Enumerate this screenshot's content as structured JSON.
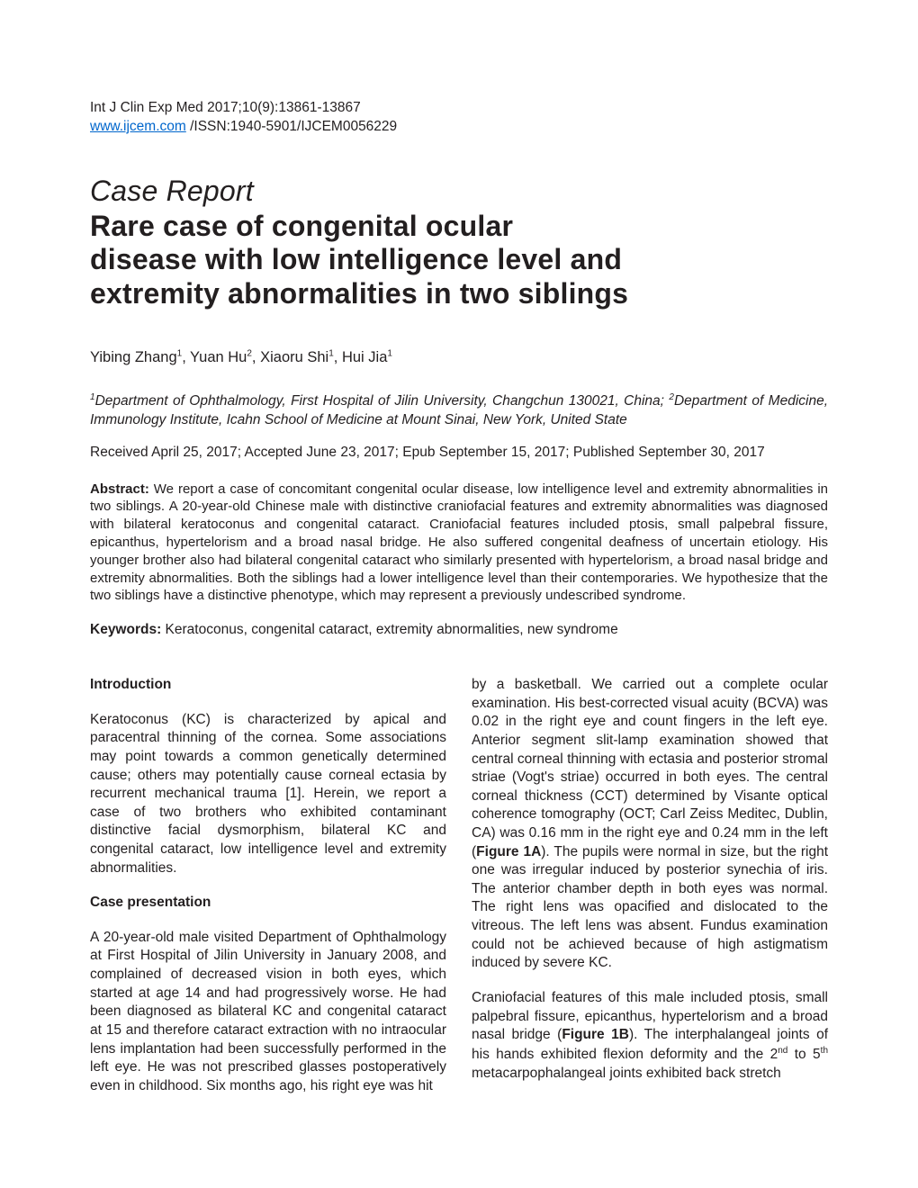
{
  "header": {
    "citation": "Int J Clin Exp Med 2017;10(9):13861-13867",
    "url": "www.ijcem.com",
    "issn_suffix": " /ISSN:1940-5901/IJCEM0056229"
  },
  "article": {
    "type": "Case Report",
    "title_line1": "Rare case of congenital ocular",
    "title_line2": "disease with low intelligence level and",
    "title_line3": "extremity abnormalities in two siblings",
    "authors_html": "Yibing Zhang<span class=\"sup\">1</span>, Yuan Hu<span class=\"sup\">2</span>, Xiaoru Shi<span class=\"sup\">1</span>, Hui Jia<span class=\"sup\">1</span>",
    "affiliations_html": "<span class=\"sup\">1</span>Department of Ophthalmology, First Hospital of Jilin University, Changchun 130021, China; <span class=\"sup\">2</span>Department of Medicine, Immunology Institute, Icahn School of Medicine at Mount Sinai, New York, United State",
    "dates": "Received April 25, 2017; Accepted June 23, 2017; Epub September 15, 2017; Published September 30, 2017",
    "abstract_label": "Abstract:",
    "abstract_text": " We report a case of concomitant congenital ocular disease, low intelligence level and extremity abnormalities in two siblings. A 20-year-old Chinese male with distinctive craniofacial features and extremity abnormalities was diagnosed with bilateral keratoconus and congenital cataract. Craniofacial features included ptosis, small palpebral fissure, epicanthus, hypertelorism and a broad nasal bridge. He also suffered congenital deafness of uncertain etiology. His younger brother also had bilateral congenital cataract who similarly presented with hypertelorism, a broad nasal bridge and extremity abnormalities. Both the siblings had a lower intelligence level than their contemporaries. We hypothesize that the two siblings have a distinctive phenotype, which may represent a previously undescribed syndrome.",
    "keywords_label": "Keywords:",
    "keywords_text": " Keratoconus, congenital cataract, extremity abnormalities, new syndrome"
  },
  "body": {
    "left": {
      "heading1": "Introduction",
      "para1": "Keratoconus (KC) is characterized by apical and paracentral thinning of the cornea. Some associations may point towards a common genetically determined cause; others may potentially cause corneal ectasia by recurrent mechanical trauma [1]. Herein, we report a case of two brothers who exhibited contaminant distinctive facial dysmorphism, bilateral KC and congenital cataract, low intelligence level and extremity abnormalities.",
      "heading2": "Case presentation",
      "para2": "A 20-year-old male visited Department of Ophthalmology at First Hospital of Jilin University in January 2008, and complained of decreased vision in both eyes, which started at age 14 and had progressively worse. He had been diagnosed as bilateral KC and congenital cataract at 15 and therefore cataract extraction with no intraocular lens implantation had been successfully performed in the left eye. He was not prescribed glasses postoperatively even in childhood. Six months ago, his right eye was hit"
    },
    "right": {
      "para1_html": "by a basketball. We carried out a complete ocular examination. His best-corrected visual acuity (BCVA) was 0.02 in the right eye and count fingers in the left eye. Anterior segment slit-lamp examination showed that central corneal thinning with ectasia and posterior stromal striae (Vogt's striae) occurred in both eyes. The central corneal thickness (CCT) determined by Visante optical coherence tomography (OCT; Carl Zeiss Meditec, Dublin, CA) was 0.16 mm in the right eye and 0.24 mm in the left (<b>Figure 1A</b>). The pupils were normal in size, but the right one was irregular induced by posterior synechia of iris. The anterior chamber depth in both eyes was normal. The right lens was opacified and dislocated to the vitreous. The left lens was absent. Fundus examination could not be achieved because of high astigmatism induced by severe KC.",
      "para2_html": "Craniofacial features of this male included ptosis, small palpebral fissure, epicanthus, hypertelorism and a broad nasal bridge (<b>Figure 1B</b>). The interphalangeal joints of his hands exhibited flexion deformity and the 2<span class=\"sup\">nd</span> to 5<span class=\"sup\">th</span> metacarpophalangeal joints exhibited back stretch"
    }
  }
}
